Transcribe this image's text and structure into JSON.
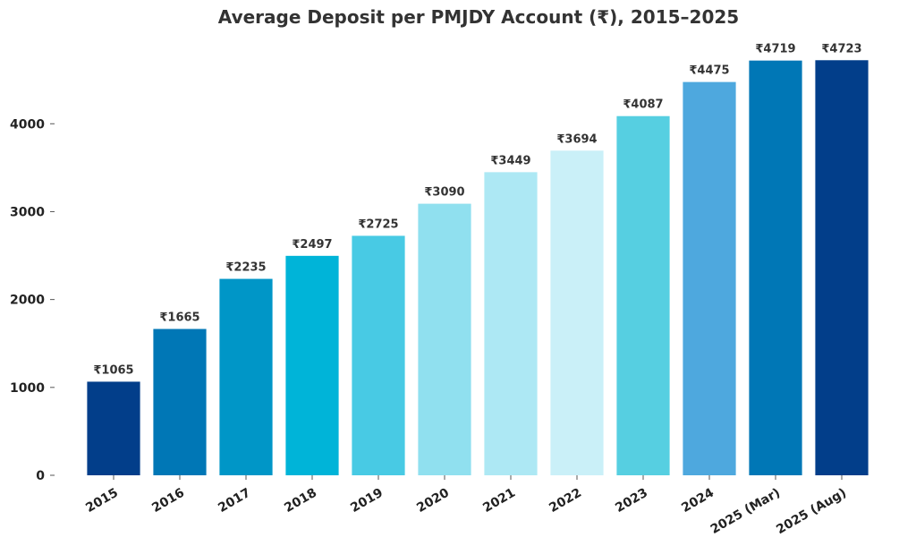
{
  "chart_data": {
    "type": "bar",
    "title": "Average Deposit per PMJDY Account (₹), 2015–2025",
    "xlabel": "",
    "ylabel": "",
    "categories": [
      "2015",
      "2016",
      "2017",
      "2018",
      "2019",
      "2020",
      "2021",
      "2022",
      "2023",
      "2024",
      "2025 (Mar)",
      "2025 (Aug)"
    ],
    "values": [
      1065,
      1665,
      2235,
      2497,
      2725,
      3090,
      3449,
      3694,
      4087,
      4475,
      4719,
      4723
    ],
    "data_labels": [
      "₹1065",
      "₹1665",
      "₹2235",
      "₹2497",
      "₹2725",
      "₹3090",
      "₹3449",
      "₹3694",
      "₹4087",
      "₹4475",
      "₹4719",
      "₹4723"
    ],
    "yticks": [
      0,
      1000,
      2000,
      3000,
      4000
    ],
    "ytick_labels": [
      "0",
      "1000",
      "2000",
      "3000",
      "4000"
    ],
    "ylim": [
      0,
      4960
    ],
    "grid": false,
    "legend": "none",
    "bar_colors": [
      "#023e8a",
      "#0077b6",
      "#0096c7",
      "#00b4d8",
      "#48cae4",
      "#90e0ef",
      "#ade8f4",
      "#caf0f8",
      "#56cfe1",
      "#4ea8de",
      "#0077b6",
      "#023e8a"
    ]
  }
}
